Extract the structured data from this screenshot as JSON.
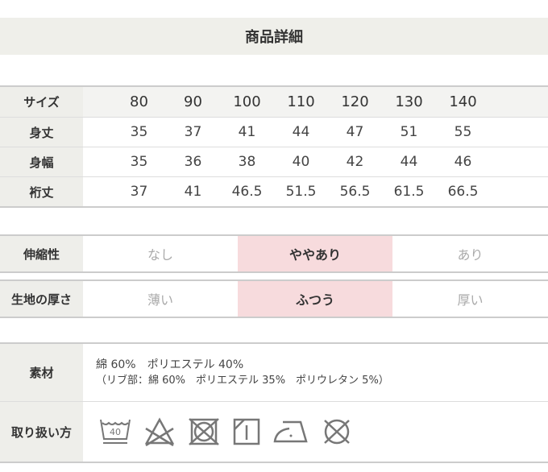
{
  "title": "商品詳細",
  "size_table": {
    "header_label": "サイズ",
    "sizes": [
      "80",
      "90",
      "100",
      "110",
      "120",
      "130",
      "140"
    ],
    "rows": [
      {
        "label": "身丈",
        "values": [
          "35",
          "37",
          "41",
          "44",
          "47",
          "51",
          "55"
        ]
      },
      {
        "label": "身幅",
        "values": [
          "35",
          "36",
          "38",
          "40",
          "42",
          "44",
          "46"
        ]
      },
      {
        "label": "裄丈",
        "values": [
          "37",
          "41",
          "46.5",
          "51.5",
          "56.5",
          "61.5",
          "66.5"
        ]
      }
    ]
  },
  "attributes": [
    {
      "label": "伸縮性",
      "options": [
        "なし",
        "ややあり",
        "あり"
      ],
      "selected": 1
    },
    {
      "label": "生地の厚さ",
      "options": [
        "薄い",
        "ふつう",
        "厚い"
      ],
      "selected": 1
    }
  ],
  "highlight_color": "#f7dbdd",
  "material": {
    "label": "素材",
    "line1": "綿 60%　ポリエステル 40%",
    "line2": "（リブ部：綿 60%　ポリエステル 35%　ポリウレタン 5%）"
  },
  "care": {
    "label": "取り扱い方",
    "wash_temp": "40",
    "icons": [
      "wash-40-icon",
      "no-bleach-icon",
      "no-tumble-dry-icon",
      "drip-dry-shade-icon",
      "iron-low-icon",
      "no-dry-clean-icon"
    ]
  }
}
